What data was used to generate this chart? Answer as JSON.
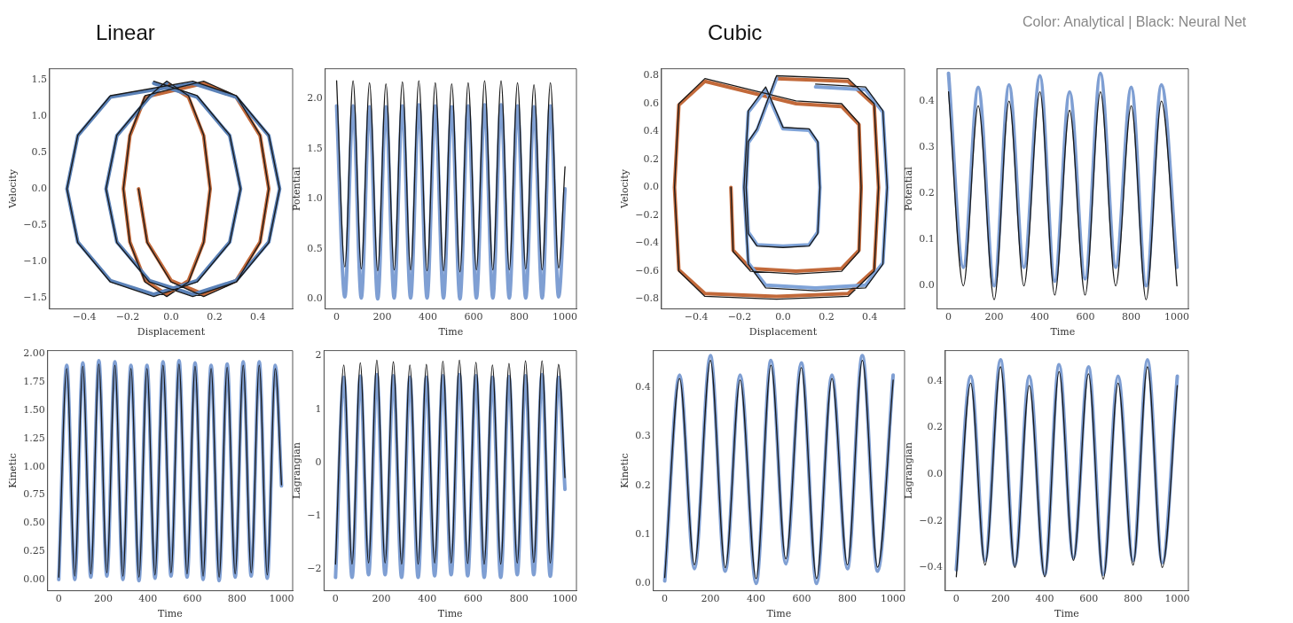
{
  "chart_data": [
    {
      "type": "line",
      "title": "Linear",
      "xlabel": "Displacement",
      "ylabel": "Velocity",
      "xlim": [
        -0.56,
        0.56
      ],
      "ylim": [
        -1.65,
        1.65
      ],
      "xticks": [
        {
          "value": -0.4,
          "label": "−0.4"
        },
        {
          "value": -0.2,
          "label": "−0.2"
        },
        {
          "value": 0,
          "label": "0.0"
        },
        {
          "value": 0.2,
          "label": "0.2"
        },
        {
          "value": 0.4,
          "label": "0.4"
        }
      ],
      "yticks": [
        {
          "value": -1.5,
          "label": "−1.5"
        },
        {
          "value": -1,
          "label": "−1.0"
        },
        {
          "value": -0.5,
          "label": "−0.5"
        },
        {
          "value": 0,
          "label": "0.0"
        },
        {
          "value": 0.5,
          "label": "0.5"
        },
        {
          "value": 1,
          "label": "1.0"
        },
        {
          "value": 1.5,
          "label": "1.5"
        }
      ],
      "series": [
        {
          "color": "#5b82b8",
          "x": [
            -0.08,
            0.12,
            0.27,
            0.32,
            0.27,
            0.12,
            -0.08,
            -0.28,
            -0.43,
            -0.48,
            -0.43,
            -0.28,
            0.1,
            0.3,
            0.45,
            0.5,
            0.45,
            0.3,
            0.1,
            -0.1,
            -0.25,
            -0.3,
            -0.25,
            -0.1,
            -0.02
          ],
          "values": [
            1.45,
            1.26,
            0.73,
            0,
            -0.73,
            -1.26,
            -1.45,
            -1.26,
            -0.73,
            0,
            0.73,
            1.26,
            1.45,
            1.26,
            0.73,
            0,
            -0.73,
            -1.26,
            -1.45,
            -1.26,
            -0.73,
            0,
            0.73,
            1.26,
            1.45
          ]
        },
        {
          "color": "#c2693a",
          "x": [
            -0.02,
            0.08,
            0.15,
            0.18,
            0.15,
            0.08,
            -0.02,
            -0.12,
            -0.19,
            -0.22,
            -0.19,
            -0.12,
            0.15,
            0.3,
            0.41,
            0.45,
            0.41,
            0.3,
            0.15,
            0,
            -0.11,
            -0.15
          ],
          "values": [
            1.45,
            1.26,
            0.73,
            0,
            -0.73,
            -1.26,
            -1.45,
            -1.26,
            -0.73,
            0,
            0.73,
            1.26,
            1.45,
            1.26,
            0.73,
            0,
            -0.73,
            -1.26,
            -1.45,
            -1.26,
            -0.73,
            0
          ]
        },
        {
          "color": "#1a1a1a",
          "x": [
            -0.08,
            0.12,
            0.27,
            0.32,
            0.27,
            0.12,
            -0.08,
            -0.28,
            -0.43,
            -0.48,
            -0.43,
            -0.28,
            0.1,
            0.3,
            0.45,
            0.5,
            0.45,
            0.3,
            0.1,
            -0.1,
            -0.25,
            -0.3,
            -0.25,
            -0.1,
            -0.02,
            0.08,
            0.15,
            0.18,
            0.15,
            0.08,
            -0.02,
            -0.12,
            -0.19,
            -0.22,
            -0.19,
            -0.12,
            0.15,
            0.3,
            0.41,
            0.45,
            0.41,
            0.3,
            0.15,
            0,
            -0.11,
            -0.15
          ],
          "values": [
            1.48,
            1.28,
            0.74,
            0,
            -0.74,
            -1.28,
            -1.48,
            -1.28,
            -0.74,
            0,
            0.74,
            1.28,
            1.48,
            1.28,
            0.74,
            0,
            -0.74,
            -1.28,
            -1.48,
            -1.28,
            -0.74,
            0,
            0.74,
            1.28,
            1.48,
            1.28,
            0.74,
            0,
            -0.74,
            -1.28,
            -1.48,
            -1.28,
            -0.74,
            0,
            0.74,
            1.28,
            1.48,
            1.28,
            0.74,
            0,
            -0.74,
            -1.28,
            -1.48,
            -1.28,
            -0.74,
            0
          ]
        }
      ]
    },
    {
      "type": "line",
      "xlabel": "Time",
      "ylabel": "Potential",
      "xlim": [
        -50,
        1050
      ],
      "ylim": [
        -0.1,
        2.3
      ],
      "xticks": [
        0,
        200,
        400,
        600,
        800,
        1000
      ],
      "yticks": [
        {
          "value": 0,
          "label": "0.0"
        },
        {
          "value": 0.5,
          "label": "0.5"
        },
        {
          "value": 1,
          "label": "1.0"
        },
        {
          "value": 1.5,
          "label": "1.5"
        },
        {
          "value": 2,
          "label": "2.0"
        }
      ],
      "x": [
        0,
        36,
        72,
        108,
        144,
        180,
        216,
        252,
        288,
        324,
        360,
        396,
        432,
        468,
        504,
        540,
        576,
        612,
        648,
        684,
        720,
        756,
        792,
        828,
        864,
        900,
        936,
        972,
        1000
      ],
      "series": [
        {
          "color": "#7f9fd3",
          "values": [
            1.93,
            0.02,
            1.93,
            0.01,
            1.92,
            0,
            1.92,
            0.01,
            1.93,
            0.01,
            1.94,
            0.01,
            1.93,
            0.01,
            1.92,
            0,
            1.93,
            0.01,
            1.94,
            0.01,
            1.94,
            0.01,
            1.93,
            0.01,
            1.92,
            0.01,
            1.93,
            0.02,
            1.1
          ]
        },
        {
          "color": "#1a1a1a",
          "values": [
            2.18,
            0.32,
            2.18,
            0.3,
            2.16,
            0.28,
            2.15,
            0.29,
            2.17,
            0.29,
            2.18,
            0.28,
            2.16,
            0.28,
            2.15,
            0.27,
            2.16,
            0.29,
            2.18,
            0.29,
            2.18,
            0.29,
            2.16,
            0.3,
            2.14,
            0.29,
            2.16,
            0.31,
            1.32
          ]
        }
      ]
    },
    {
      "type": "line",
      "xlabel": "Time",
      "ylabel": "Kinetic",
      "xlim": [
        -50,
        1050
      ],
      "ylim": [
        -0.1,
        2.03
      ],
      "xticks": [
        0,
        200,
        400,
        600,
        800,
        1000
      ],
      "yticks": [
        {
          "value": 0,
          "label": "0.00"
        },
        {
          "value": 0.25,
          "label": "0.25"
        },
        {
          "value": 0.5,
          "label": "0.50"
        },
        {
          "value": 0.75,
          "label": "0.75"
        },
        {
          "value": 1,
          "label": "1.00"
        },
        {
          "value": 1.25,
          "label": "1.25"
        },
        {
          "value": 1.5,
          "label": "1.50"
        },
        {
          "value": 1.75,
          "label": "1.75"
        },
        {
          "value": 2,
          "label": "2.00"
        }
      ],
      "x": [
        0,
        36,
        72,
        108,
        144,
        180,
        216,
        252,
        288,
        324,
        360,
        396,
        432,
        468,
        504,
        540,
        576,
        612,
        648,
        684,
        720,
        756,
        792,
        828,
        864,
        900,
        936,
        972,
        1000
      ],
      "series": [
        {
          "color": "#7f9fd3",
          "values": [
            0,
            1.9,
            0,
            1.92,
            0.02,
            1.94,
            0.03,
            1.93,
            0,
            1.9,
            -0.01,
            1.9,
            0.01,
            1.93,
            0.03,
            1.94,
            0.02,
            1.92,
            0,
            1.9,
            -0.01,
            1.91,
            0.02,
            1.93,
            0.03,
            1.93,
            0.01,
            1.9,
            0.83
          ]
        },
        {
          "color": "#1a1a1a",
          "values": [
            0.02,
            1.87,
            0.03,
            1.89,
            0.05,
            1.91,
            0.06,
            1.9,
            0.03,
            1.87,
            0.02,
            1.87,
            0.04,
            1.9,
            0.06,
            1.91,
            0.05,
            1.89,
            0.03,
            1.87,
            0.02,
            1.88,
            0.05,
            1.9,
            0.06,
            1.9,
            0.04,
            1.87,
            0.84
          ]
        }
      ]
    },
    {
      "type": "line",
      "xlabel": "Time",
      "ylabel": "Lagrangian",
      "xlim": [
        -50,
        1050
      ],
      "ylim": [
        -2.4,
        2.1
      ],
      "xticks": [
        0,
        200,
        400,
        600,
        800,
        1000
      ],
      "yticks": [
        {
          "value": -2,
          "label": "−2"
        },
        {
          "value": -1,
          "label": "−1"
        },
        0,
        1,
        2
      ],
      "x": [
        0,
        36,
        72,
        108,
        144,
        180,
        216,
        252,
        288,
        324,
        360,
        396,
        432,
        468,
        504,
        540,
        576,
        612,
        648,
        684,
        720,
        756,
        792,
        828,
        864,
        900,
        936,
        972,
        1000
      ],
      "series": [
        {
          "color": "#7f9fd3",
          "values": [
            -2.15,
            1.6,
            -2.15,
            1.62,
            -2.1,
            1.65,
            -2.1,
            1.63,
            -2.15,
            1.6,
            -2.15,
            1.6,
            -2.12,
            1.63,
            -2.1,
            1.65,
            -2.12,
            1.63,
            -2.15,
            1.6,
            -2.15,
            1.61,
            -2.1,
            1.63,
            -2.1,
            1.65,
            -2.13,
            1.6,
            -0.5
          ]
        },
        {
          "color": "#1a1a1a",
          "values": [
            -1.9,
            1.83,
            -1.9,
            1.87,
            -1.88,
            1.92,
            -1.88,
            1.89,
            -1.9,
            1.83,
            -1.9,
            1.84,
            -1.88,
            1.9,
            -1.88,
            1.92,
            -1.89,
            1.88,
            -1.9,
            1.83,
            -1.9,
            1.86,
            -1.88,
            1.91,
            -1.87,
            1.91,
            -1.88,
            1.84,
            -0.28
          ]
        }
      ]
    },
    {
      "type": "line",
      "title": "Cubic",
      "annotations": [
        "Color: Analytical | Black: Neural Net"
      ],
      "xlabel": "Displacement",
      "ylabel": "Velocity",
      "xlim": [
        -0.56,
        0.56
      ],
      "ylim": [
        -0.87,
        0.85
      ],
      "xticks": [
        {
          "value": -0.4,
          "label": "−0.4"
        },
        {
          "value": -0.2,
          "label": "−0.2"
        },
        {
          "value": 0,
          "label": "0.0"
        },
        {
          "value": 0.2,
          "label": "0.2"
        },
        {
          "value": 0.4,
          "label": "0.4"
        }
      ],
      "yticks": [
        {
          "value": -0.8,
          "label": "−0.8"
        },
        {
          "value": -0.6,
          "label": "−0.6"
        },
        {
          "value": -0.4,
          "label": "−0.4"
        },
        {
          "value": -0.2,
          "label": "−0.2"
        },
        {
          "value": 0,
          "label": "0.0"
        },
        {
          "value": 0.2,
          "label": "0.2"
        },
        {
          "value": 0.4,
          "label": "0.4"
        },
        {
          "value": 0.6,
          "label": "0.6"
        },
        {
          "value": 0.8,
          "label": "0.8"
        }
      ],
      "series": [
        {
          "color": "#7fa3d8",
          "x": [
            0.15,
            0.38,
            0.46,
            0.48,
            0.46,
            0.38,
            0.15,
            -0.08,
            -0.16,
            -0.18,
            -0.16,
            -0.08,
            0,
            0.12,
            0.16,
            0.17,
            0.16,
            0.12,
            0,
            -0.12,
            -0.16,
            -0.17,
            -0.16,
            -0.12,
            -0.03
          ],
          "values": [
            0.72,
            0.7,
            0.54,
            0,
            -0.54,
            -0.7,
            -0.72,
            -0.7,
            -0.54,
            0,
            0.54,
            0.7,
            0.42,
            0.41,
            0.32,
            0,
            -0.32,
            -0.41,
            -0.42,
            -0.41,
            -0.32,
            0,
            0.32,
            0.41,
            0.78
          ]
        },
        {
          "color": "#c2693a",
          "x": [
            -0.03,
            0.3,
            0.42,
            0.44,
            0.42,
            0.3,
            -0.03,
            -0.36,
            -0.48,
            -0.5,
            -0.48,
            -0.36,
            0.06,
            0.27,
            0.35,
            0.36,
            0.35,
            0.27,
            0.06,
            -0.15,
            -0.23,
            -0.24
          ],
          "values": [
            0.78,
            0.76,
            0.59,
            0,
            -0.59,
            -0.76,
            -0.78,
            -0.76,
            -0.59,
            0,
            0.59,
            0.76,
            0.6,
            0.58,
            0.45,
            0,
            -0.45,
            -0.58,
            -0.6,
            -0.58,
            -0.45,
            0
          ]
        },
        {
          "color": "#1a1a1a",
          "x": [
            0.15,
            0.38,
            0.46,
            0.48,
            0.46,
            0.38,
            0.15,
            -0.08,
            -0.16,
            -0.18,
            -0.16,
            -0.08,
            0,
            0.12,
            0.16,
            0.17,
            0.16,
            0.12,
            0,
            -0.12,
            -0.16,
            -0.17,
            -0.16,
            -0.12,
            -0.03,
            0.3,
            0.42,
            0.44,
            0.42,
            0.3,
            -0.03,
            -0.36,
            -0.48,
            -0.5,
            -0.48,
            -0.36,
            0.06,
            0.27,
            0.35,
            0.36,
            0.35,
            0.27,
            0.06,
            -0.15,
            -0.23,
            -0.24
          ],
          "values": [
            0.74,
            0.72,
            0.55,
            0,
            -0.55,
            -0.72,
            -0.74,
            -0.72,
            -0.55,
            0,
            0.55,
            0.72,
            0.43,
            0.42,
            0.33,
            0,
            -0.33,
            -0.42,
            -0.43,
            -0.42,
            -0.33,
            0,
            0.33,
            0.42,
            0.8,
            0.78,
            0.6,
            0,
            -0.6,
            -0.78,
            -0.8,
            -0.78,
            -0.6,
            0,
            0.6,
            0.78,
            0.62,
            0.6,
            0.46,
            0,
            -0.46,
            -0.6,
            -0.62,
            -0.6,
            -0.46,
            0
          ]
        }
      ]
    },
    {
      "type": "line",
      "xlabel": "Time",
      "ylabel": "Potential",
      "xlim": [
        -50,
        1050
      ],
      "ylim": [
        -0.05,
        0.47
      ],
      "xticks": [
        0,
        200,
        400,
        600,
        800,
        1000
      ],
      "yticks": [
        {
          "value": 0,
          "label": "0.0"
        },
        {
          "value": 0.1,
          "label": "0.1"
        },
        {
          "value": 0.2,
          "label": "0.2"
        },
        {
          "value": 0.3,
          "label": "0.3"
        },
        {
          "value": 0.4,
          "label": "0.4"
        }
      ],
      "x": [
        0,
        65,
        130,
        200,
        265,
        330,
        400,
        465,
        530,
        598,
        665,
        732,
        800,
        865,
        932,
        1000
      ],
      "series": [
        {
          "color": "#7f9fd3",
          "values": [
            0.46,
            0.04,
            0.43,
            0,
            0.435,
            0.04,
            0.455,
            0.01,
            0.42,
            0.015,
            0.46,
            0.04,
            0.43,
            0,
            0.435,
            0.04
          ]
        },
        {
          "color": "#1a1a1a",
          "values": [
            0.42,
            0,
            0.39,
            -0.03,
            0.4,
            0,
            0.42,
            -0.02,
            0.38,
            -0.02,
            0.42,
            0,
            0.39,
            -0.03,
            0.4,
            0
          ]
        }
      ]
    },
    {
      "type": "line",
      "xlabel": "Time",
      "ylabel": "Kinetic",
      "xlim": [
        -50,
        1050
      ],
      "ylim": [
        -0.015,
        0.475
      ],
      "xticks": [
        0,
        200,
        400,
        600,
        800,
        1000
      ],
      "yticks": [
        {
          "value": 0,
          "label": "0.0"
        },
        {
          "value": 0.1,
          "label": "0.1"
        },
        {
          "value": 0.2,
          "label": "0.2"
        },
        {
          "value": 0.3,
          "label": "0.3"
        },
        {
          "value": 0.4,
          "label": "0.4"
        }
      ],
      "x": [
        0,
        65,
        130,
        200,
        265,
        330,
        400,
        465,
        530,
        598,
        665,
        732,
        800,
        865,
        932,
        1000
      ],
      "series": [
        {
          "color": "#7f9fd3",
          "values": [
            0.005,
            0.425,
            0.03,
            0.465,
            0.025,
            0.425,
            0.0,
            0.455,
            0.04,
            0.45,
            0.0,
            0.425,
            0.03,
            0.465,
            0.025,
            0.425
          ]
        },
        {
          "color": "#1a1a1a",
          "values": [
            0.012,
            0.418,
            0.038,
            0.455,
            0.032,
            0.415,
            0.01,
            0.445,
            0.05,
            0.44,
            0.01,
            0.418,
            0.038,
            0.455,
            0.033,
            0.415
          ]
        }
      ]
    },
    {
      "type": "line",
      "xlabel": "Time",
      "ylabel": "Lagrangian",
      "xlim": [
        -50,
        1050
      ],
      "ylim": [
        -0.5,
        0.53
      ],
      "xticks": [
        0,
        200,
        400,
        600,
        800,
        1000
      ],
      "yticks": [
        {
          "value": -0.4,
          "label": "−0.4"
        },
        {
          "value": -0.2,
          "label": "−0.2"
        },
        {
          "value": 0,
          "label": "0.0"
        },
        {
          "value": 0.2,
          "label": "0.2"
        },
        {
          "value": 0.4,
          "label": "0.4"
        }
      ],
      "x": [
        0,
        65,
        130,
        200,
        265,
        330,
        400,
        465,
        530,
        598,
        665,
        732,
        800,
        865,
        932,
        1000
      ],
      "series": [
        {
          "color": "#7f9fd3",
          "values": [
            -0.41,
            0.42,
            -0.37,
            0.49,
            -0.39,
            0.42,
            -0.43,
            0.47,
            -0.36,
            0.46,
            -0.43,
            0.42,
            -0.37,
            0.49,
            -0.38,
            0.42
          ]
        },
        {
          "color": "#1a1a1a",
          "values": [
            -0.44,
            0.39,
            -0.39,
            0.46,
            -0.4,
            0.38,
            -0.44,
            0.44,
            -0.37,
            0.43,
            -0.45,
            0.39,
            -0.39,
            0.46,
            -0.4,
            0.38
          ]
        }
      ]
    }
  ]
}
